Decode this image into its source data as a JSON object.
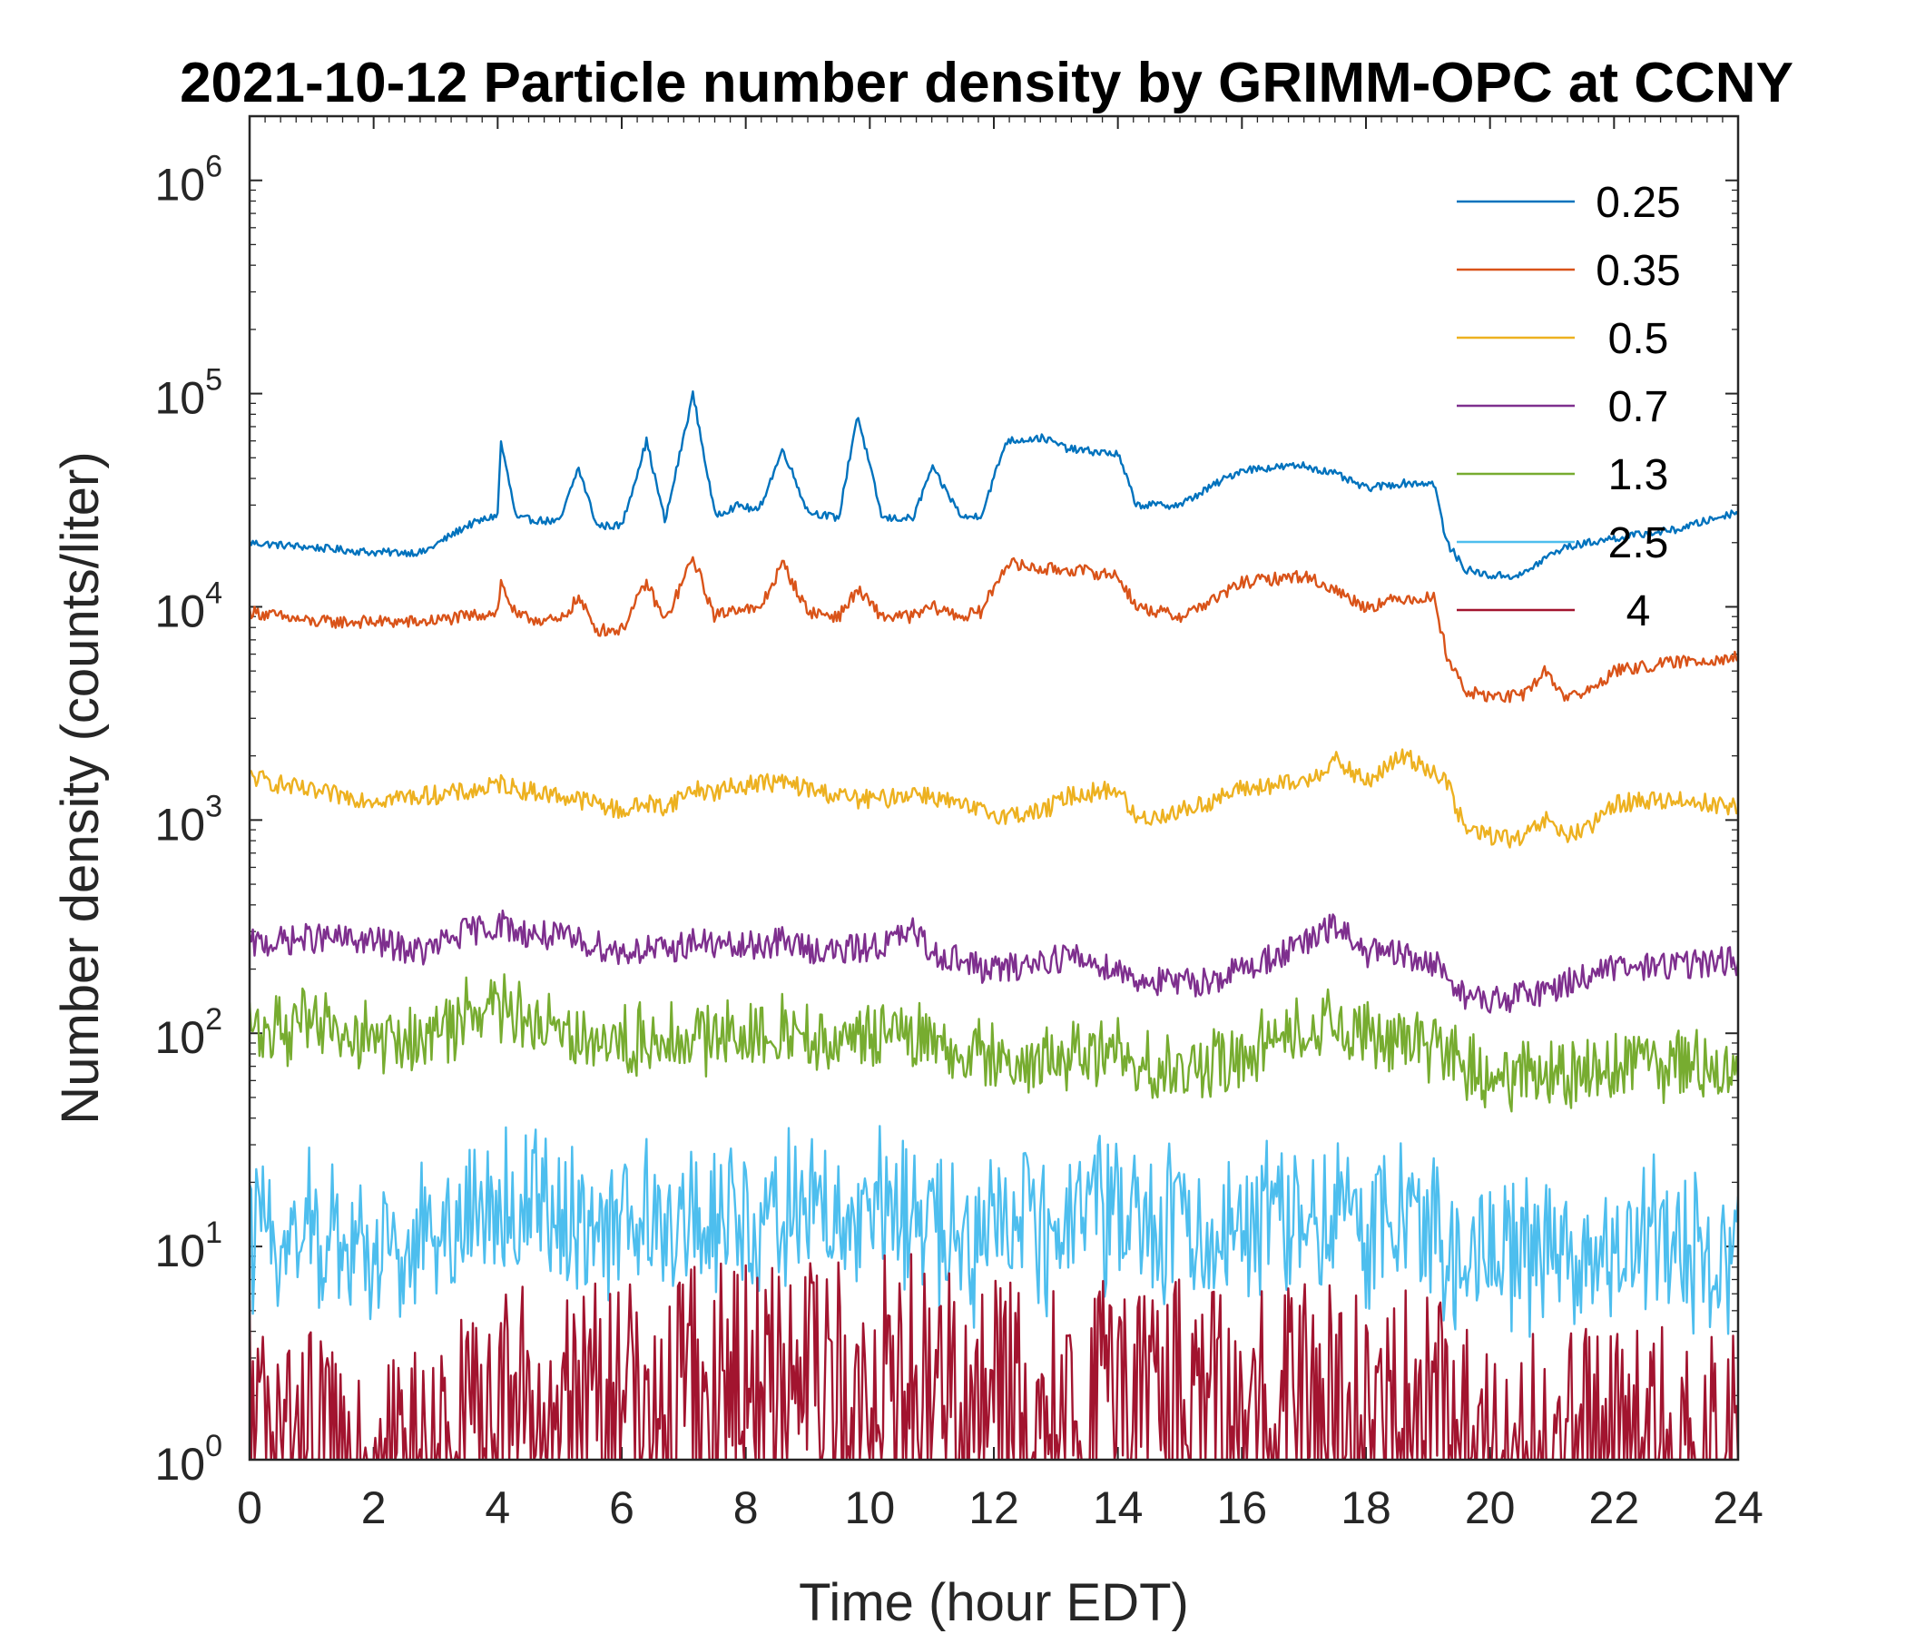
{
  "chart_data": {
    "type": "line",
    "title": "2021-10-12 Particle number density by GRIMM-OPC at CCNY",
    "xlabel": "Time (hour EDT)",
    "ylabel": "Number density (counts/liter)",
    "xlim": [
      0,
      24
    ],
    "ylim": [
      1,
      2000000
    ],
    "yscale": "log",
    "x_ticks": [
      "0",
      "2",
      "4",
      "6",
      "8",
      "10",
      "12",
      "14",
      "16",
      "18",
      "20",
      "22",
      "24"
    ],
    "y_ticks": [
      {
        "base": "10",
        "exp": "0"
      },
      {
        "base": "10",
        "exp": "1"
      },
      {
        "base": "10",
        "exp": "2"
      },
      {
        "base": "10",
        "exp": "3"
      },
      {
        "base": "10",
        "exp": "4"
      },
      {
        "base": "10",
        "exp": "5"
      },
      {
        "base": "10",
        "exp": "6"
      }
    ],
    "legend_position": "top-right",
    "x": [
      0,
      1,
      2,
      2.8,
      3.5,
      4,
      4.05,
      4.3,
      5,
      5.3,
      5.6,
      6,
      6.4,
      6.7,
      7.15,
      7.5,
      7.9,
      8.2,
      8.6,
      9,
      9.5,
      9.8,
      10.2,
      10.7,
      11,
      11.5,
      11.8,
      12.2,
      12.8,
      13.2,
      14,
      14.3,
      15,
      15.6,
      16,
      17,
      17.5,
      18,
      18.6,
      19.1,
      19.3,
      19.6,
      20,
      20.5,
      20.9,
      21.2,
      21.6,
      22,
      23,
      24
    ],
    "series": [
      {
        "name": "0.25",
        "color": "#0072BD",
        "values": [
          20000,
          19000,
          18000,
          18000,
          24000,
          27000,
          60000,
          26000,
          25000,
          45000,
          24000,
          24000,
          60000,
          25000,
          100000,
          27000,
          30000,
          28000,
          55000,
          28000,
          26000,
          80000,
          26000,
          26000,
          45000,
          26000,
          27000,
          60000,
          62000,
          55000,
          52000,
          30000,
          30000,
          38000,
          44000,
          46000,
          42000,
          36000,
          38000,
          38000,
          20000,
          15000,
          14000,
          14000,
          17000,
          19000,
          20000,
          21000,
          23000,
          28000
        ]
      },
      {
        "name": "0.35",
        "color": "#D95319",
        "values": [
          9500,
          8500,
          8500,
          8500,
          9000,
          9500,
          13000,
          9000,
          8500,
          11000,
          7800,
          7800,
          13000,
          8500,
          17000,
          9000,
          10000,
          9500,
          16000,
          9500,
          9000,
          12000,
          9000,
          9000,
          10000,
          9000,
          9500,
          16000,
          15000,
          15000,
          14000,
          10000,
          9000,
          11000,
          13000,
          14000,
          12000,
          10000,
          11000,
          11000,
          6000,
          4000,
          3800,
          3800,
          5000,
          3800,
          4000,
          5000,
          5500,
          5800
        ]
      },
      {
        "name": "0.5",
        "color": "#EDB120",
        "values": [
          1600,
          1350,
          1250,
          1300,
          1350,
          1450,
          1500,
          1400,
          1300,
          1250,
          1200,
          1100,
          1200,
          1150,
          1400,
          1350,
          1450,
          1500,
          1500,
          1400,
          1300,
          1250,
          1250,
          1350,
          1300,
          1150,
          1100,
          1050,
          1100,
          1300,
          1400,
          1000,
          1100,
          1250,
          1400,
          1500,
          1900,
          1500,
          2000,
          1700,
          1500,
          900,
          850,
          800,
          1000,
          850,
          900,
          1200,
          1250,
          1150
        ]
      },
      {
        "name": "0.7",
        "color": "#7E2F8E",
        "values": [
          260,
          280,
          270,
          240,
          300,
          320,
          330,
          300,
          280,
          270,
          260,
          240,
          250,
          240,
          270,
          260,
          250,
          260,
          270,
          250,
          240,
          250,
          260,
          300,
          240,
          220,
          200,
          200,
          220,
          230,
          200,
          180,
          170,
          180,
          200,
          260,
          320,
          240,
          230,
          210,
          190,
          150,
          140,
          150,
          160,
          170,
          190,
          200,
          210,
          220
        ]
      },
      {
        "name": "1.3",
        "color": "#77AC30",
        "values": [
          110,
          105,
          95,
          90,
          120,
          130,
          135,
          120,
          110,
          100,
          95,
          90,
          95,
          90,
          100,
          95,
          100,
          100,
          105,
          95,
          90,
          90,
          95,
          100,
          90,
          80,
          75,
          70,
          75,
          80,
          80,
          70,
          65,
          75,
          85,
          100,
          110,
          95,
          90,
          85,
          80,
          65,
          60,
          60,
          65,
          65,
          70,
          75,
          70,
          75
        ]
      },
      {
        "name": "2.5",
        "color": "#4DBEEE",
        "values": [
          12,
          11,
          10,
          10,
          14,
          16,
          15,
          15,
          14,
          13,
          12,
          12,
          13,
          12,
          14,
          13,
          14,
          15,
          15,
          14,
          13,
          13,
          14,
          14,
          12,
          11,
          11,
          12,
          12,
          13,
          13,
          12,
          12,
          13,
          13,
          14,
          14,
          13,
          13,
          12,
          10,
          9,
          9,
          9,
          10,
          10,
          10,
          10,
          10,
          10
        ]
      },
      {
        "name": "4",
        "color": "#A2142F",
        "values": [
          2,
          1.5,
          1,
          1.2,
          2,
          2.5,
          2.5,
          2.5,
          2.5,
          2.5,
          2.5,
          2.5,
          2.5,
          2.5,
          3,
          3,
          3,
          3,
          3,
          3,
          3,
          3,
          3.5,
          3.5,
          3,
          2.5,
          2.5,
          2.5,
          2.5,
          2.5,
          2.5,
          2.5,
          2.5,
          2.5,
          2.5,
          2.5,
          2.5,
          2.5,
          2.5,
          2.5,
          2,
          1.5,
          1.5,
          1.5,
          1.5,
          1.5,
          1.5,
          1.5,
          1.5,
          1.5
        ]
      }
    ]
  }
}
